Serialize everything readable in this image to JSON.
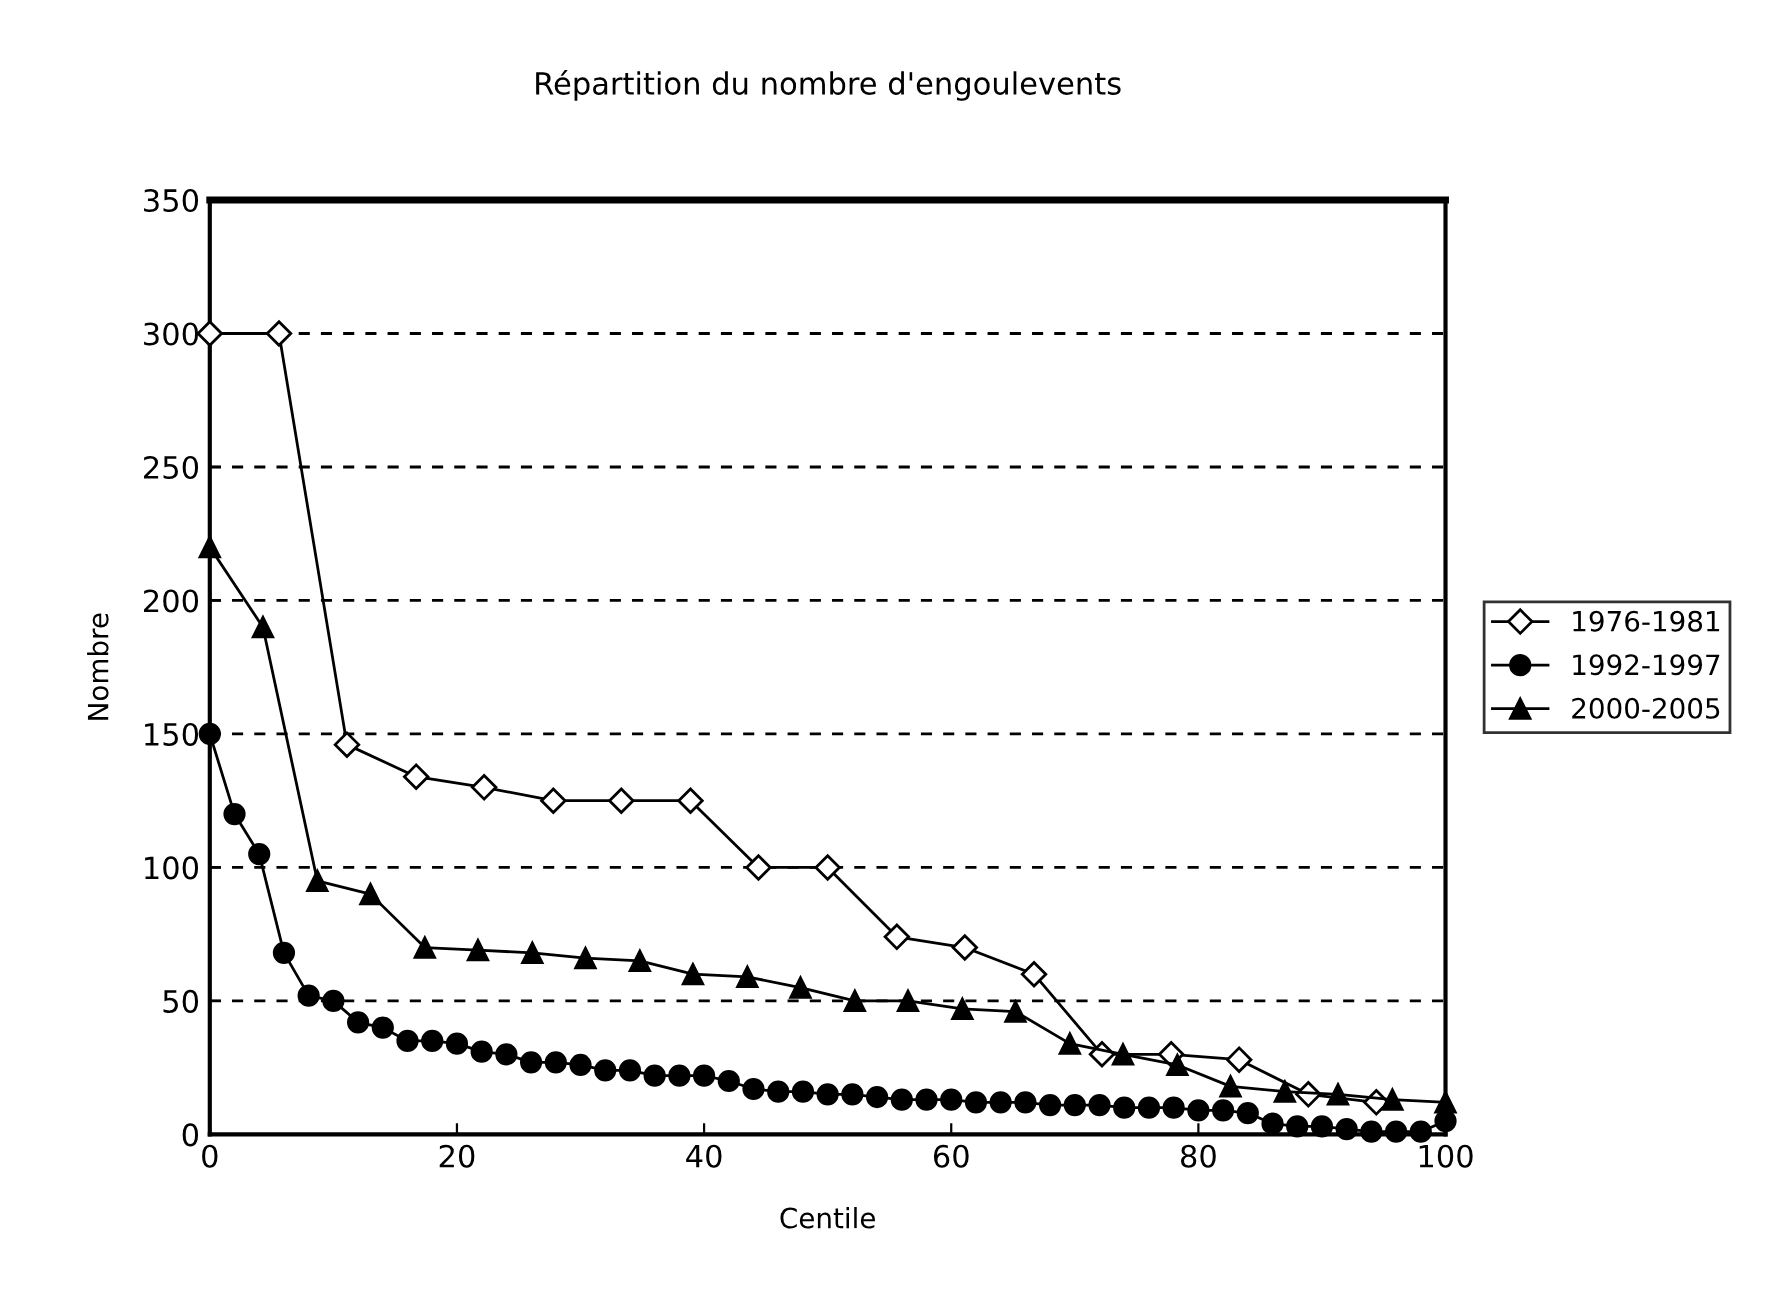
{
  "chart_data": {
    "type": "line",
    "title": "Répartition du nombre d'engoulevents",
    "xlabel": "Centile",
    "ylabel": "Nombre",
    "xlim": [
      0,
      100
    ],
    "xticks": [
      0,
      20,
      40,
      60,
      80,
      100
    ],
    "ylim": [
      0,
      350
    ],
    "yticks": [
      0,
      50,
      100,
      150,
      200,
      250,
      300,
      350
    ],
    "grid": "y",
    "legend": "right",
    "line_style": "solid",
    "series": [
      {
        "name": "1976-1981",
        "color": "#000000",
        "marker": "diamond",
        "x": [
          0,
          5.6,
          11.1,
          16.7,
          22.2,
          27.8,
          33.3,
          38.9,
          44.4,
          50.0,
          55.6,
          61.1,
          66.7,
          72.2,
          77.8,
          83.3,
          88.9,
          94.4
        ],
        "values": [
          300,
          300,
          146,
          134,
          130,
          125,
          125,
          125,
          100,
          100,
          74,
          70,
          60,
          30,
          30,
          28,
          15,
          12
        ]
      },
      {
        "name": "1992-1997",
        "color": "#000000",
        "marker": "circle",
        "x": [
          0,
          2,
          4,
          6,
          8,
          10,
          12,
          14,
          16,
          18,
          20,
          22,
          24,
          26,
          28,
          30,
          32,
          34,
          36,
          38,
          40,
          42,
          44,
          46,
          48,
          50,
          52,
          54,
          56,
          58,
          60,
          62,
          64,
          66,
          68,
          70,
          72,
          74,
          76,
          78,
          80,
          82,
          84,
          86,
          88,
          90,
          92,
          94,
          96,
          98,
          100
        ],
        "values": [
          150,
          120,
          105,
          68,
          52,
          50,
          42,
          40,
          35,
          35,
          34,
          31,
          30,
          27,
          27,
          26,
          24,
          24,
          22,
          22,
          22,
          20,
          17,
          16,
          16,
          15,
          15,
          14,
          13,
          13,
          13,
          12,
          12,
          12,
          11,
          11,
          11,
          10,
          10,
          10,
          9,
          9,
          8,
          4,
          3,
          3,
          2,
          1,
          1,
          1,
          5
        ]
      },
      {
        "name": "2000-2005",
        "color": "#000000",
        "marker": "triangle",
        "x": [
          0,
          4.3,
          8.7,
          13.0,
          17.4,
          21.7,
          26.1,
          30.4,
          34.8,
          39.1,
          43.5,
          47.8,
          52.2,
          56.5,
          60.9,
          65.2,
          69.6,
          73.9,
          78.3,
          82.6,
          87.0,
          91.3,
          95.7,
          100
        ],
        "values": [
          220,
          190,
          95,
          90,
          70,
          69,
          68,
          66,
          65,
          60,
          59,
          55,
          50,
          50,
          47,
          46,
          34,
          30,
          26,
          18,
          16,
          15,
          13,
          12
        ]
      }
    ]
  }
}
